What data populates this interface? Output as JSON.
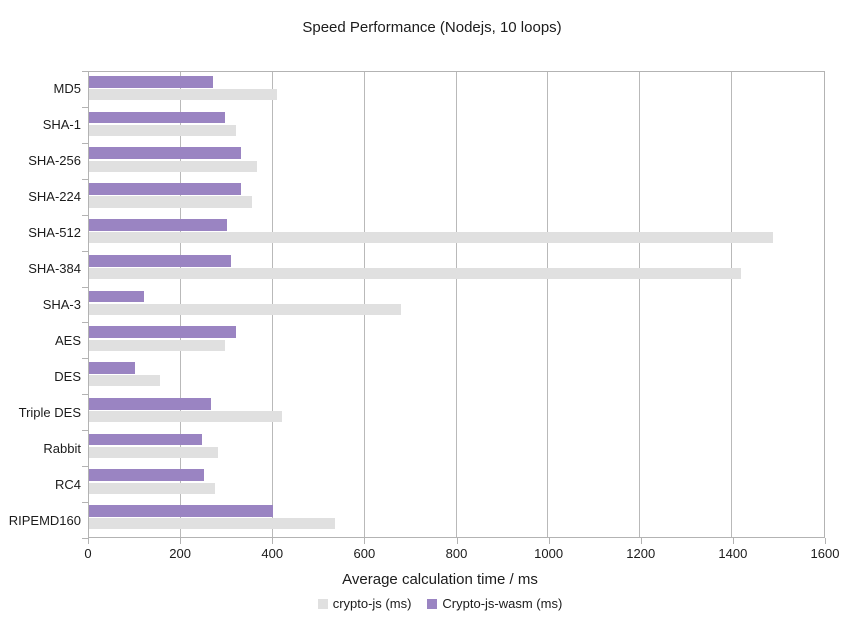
{
  "chart": {
    "title": "Speed Performance (Nodejs, 10 loops)",
    "xlabel": "Average calculation time / ms"
  },
  "chart_data": {
    "type": "bar",
    "orientation": "horizontal",
    "title": "Speed Performance (Nodejs, 10 loops)",
    "xlabel": "Average calculation time / ms",
    "ylabel": "",
    "categories": [
      "MD5",
      "SHA-1",
      "SHA-256",
      "SHA-224",
      "SHA-512",
      "SHA-384",
      "SHA-3",
      "AES",
      "DES",
      "Triple DES",
      "Rabbit",
      "RC4",
      "RIPEMD160"
    ],
    "series": [
      {
        "name": "crypto-js (ms)",
        "color": "#e0e0e0",
        "values": [
          410,
          320,
          365,
          355,
          1490,
          1420,
          680,
          295,
          155,
          420,
          280,
          275,
          535
        ]
      },
      {
        "name": "Crypto-js-wasm (ms)",
        "color": "#9a84c2",
        "values": [
          270,
          295,
          330,
          330,
          300,
          310,
          120,
          320,
          100,
          265,
          245,
          250,
          400
        ]
      }
    ],
    "xlim": [
      0,
      1600
    ],
    "xticks": [
      0,
      200,
      400,
      600,
      800,
      1000,
      1200,
      1400,
      1600
    ],
    "grid": true,
    "grid_color": "#b9b9b9",
    "axis_color": "#b3b3b3",
    "legend_position": "bottom",
    "note_draw_order": "within each category band the second series (purple) is drawn above the first series (gray)"
  }
}
